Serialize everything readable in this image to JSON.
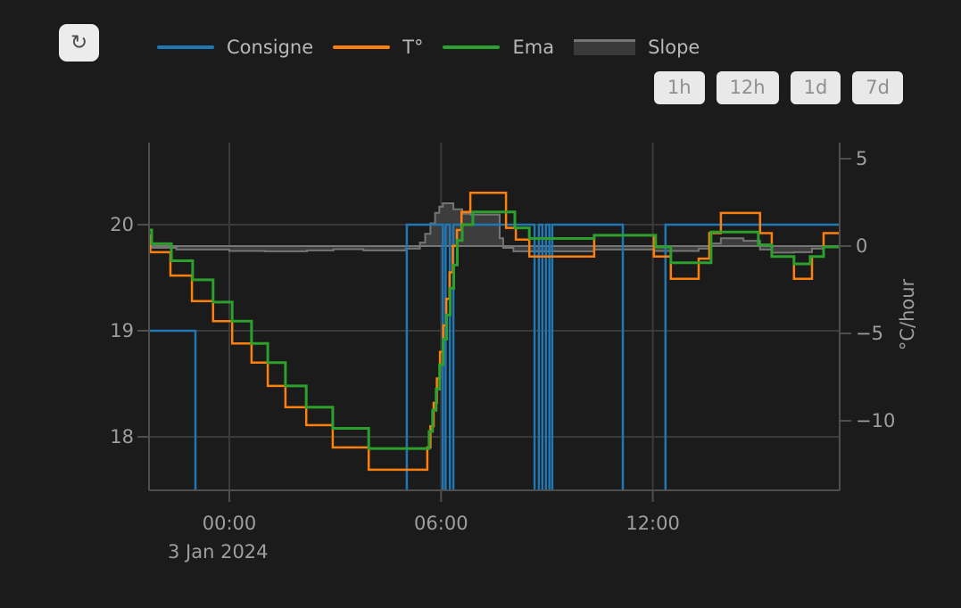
{
  "toolbar": {
    "refresh_icon": "↻",
    "range_buttons": [
      "1h",
      "12h",
      "1d",
      "7d"
    ]
  },
  "legend": {
    "items": [
      {
        "label": "Consigne",
        "color": "#1f77b4",
        "swatch": "line"
      },
      {
        "label": "T°",
        "color": "#ff7f0e",
        "swatch": "line"
      },
      {
        "label": "Ema",
        "color": "#2ca02c",
        "swatch": "line"
      },
      {
        "label": "Slope",
        "color": "#757575",
        "swatch": "area"
      }
    ]
  },
  "chart_data": {
    "type": "line",
    "title": "",
    "x_axis": {
      "date_label": "3 Jan 2024",
      "units": "time of day (hours)",
      "range": [
        -2.28,
        17.29
      ],
      "ticks": [
        {
          "label": "00:00",
          "t": 0
        },
        {
          "label": "06:00",
          "t": 6
        },
        {
          "label": "12:00",
          "t": 12
        }
      ]
    },
    "y_axis_left": {
      "units": "°C",
      "range": [
        17.45,
        20.78
      ],
      "ticks": [
        {
          "label": "20",
          "v": 20
        },
        {
          "label": "19",
          "v": 19
        },
        {
          "label": "18",
          "v": 18
        }
      ]
    },
    "y_axis_right": {
      "title": "°C/hour",
      "range": [
        -14.8,
        5.9
      ],
      "ticks": [
        {
          "label": "5",
          "v": 5
        },
        {
          "label": "0",
          "v": 0
        },
        {
          "label": "−5",
          "v": -5
        },
        {
          "label": "−10",
          "v": -10
        }
      ]
    },
    "series": [
      {
        "name": "Slope",
        "axis": "right",
        "style": "step-area",
        "line_color": "#757575",
        "fill_color": "#3d3d3d",
        "points": [
          [
            -2.28,
            -0.1
          ],
          [
            -1.5,
            -0.2
          ],
          [
            0,
            -0.28
          ],
          [
            1,
            -0.3
          ],
          [
            2.2,
            -0.25
          ],
          [
            2.95,
            -0.18
          ],
          [
            3.8,
            -0.25
          ],
          [
            5,
            -0.15
          ],
          [
            5.4,
            0.2
          ],
          [
            5.55,
            0.7
          ],
          [
            5.7,
            1.3
          ],
          [
            5.83,
            1.9
          ],
          [
            5.95,
            2.25
          ],
          [
            6.05,
            2.45
          ],
          [
            6.35,
            2.1
          ],
          [
            6.6,
            1.85
          ],
          [
            6.83,
            1.8
          ],
          [
            7.66,
            0.45
          ],
          [
            7.76,
            -0.1
          ],
          [
            8.05,
            -0.3
          ],
          [
            10.34,
            -0.2
          ],
          [
            12.03,
            -0.28
          ],
          [
            13.3,
            -0.15
          ],
          [
            13.6,
            0.15
          ],
          [
            13.93,
            0.45
          ],
          [
            14.57,
            0.3
          ],
          [
            15.04,
            -0.2
          ],
          [
            15.37,
            -0.38
          ],
          [
            16,
            -0.35
          ],
          [
            16.51,
            -0.15
          ],
          [
            16.84,
            -0.02
          ]
        ]
      },
      {
        "name": "Consigne",
        "axis": "left",
        "style": "step-line",
        "line_color": "#1f77b4",
        "points": [
          [
            -2.28,
            19
          ],
          [
            -0.96,
            17
          ],
          [
            5.03,
            20
          ],
          [
            6.05,
            17
          ],
          [
            6.13,
            20
          ],
          [
            6.25,
            17
          ],
          [
            6.35,
            20
          ],
          [
            8.65,
            17
          ],
          [
            8.77,
            20
          ],
          [
            8.87,
            17
          ],
          [
            8.97,
            20
          ],
          [
            9.07,
            17
          ],
          [
            9.15,
            20
          ],
          [
            11.15,
            17
          ],
          [
            12.36,
            20
          ]
        ]
      },
      {
        "name": "T°",
        "axis": "left",
        "style": "step-line",
        "line_color": "#ff7f0e",
        "points": [
          [
            -2.28,
            19.9
          ],
          [
            -2.24,
            19.74
          ],
          [
            -1.67,
            19.52
          ],
          [
            -1.06,
            19.28
          ],
          [
            -0.46,
            19.09
          ],
          [
            0.08,
            18.88
          ],
          [
            0.63,
            18.7
          ],
          [
            1.09,
            18.48
          ],
          [
            1.59,
            18.28
          ],
          [
            2.18,
            18.11
          ],
          [
            2.93,
            17.9
          ],
          [
            3.95,
            17.69
          ],
          [
            5.61,
            17.9
          ],
          [
            5.7,
            18.1
          ],
          [
            5.79,
            18.32
          ],
          [
            5.88,
            18.55
          ],
          [
            5.97,
            18.8
          ],
          [
            6.06,
            19.05
          ],
          [
            6.15,
            19.3
          ],
          [
            6.24,
            19.55
          ],
          [
            6.33,
            19.8
          ],
          [
            6.45,
            19.95
          ],
          [
            6.58,
            20.12
          ],
          [
            6.83,
            20.3
          ],
          [
            7.84,
            19.97
          ],
          [
            8.12,
            19.86
          ],
          [
            8.5,
            19.7
          ],
          [
            10.34,
            19.9
          ],
          [
            12.03,
            19.7
          ],
          [
            12.51,
            19.49
          ],
          [
            13.3,
            19.68
          ],
          [
            13.6,
            19.92
          ],
          [
            13.93,
            20.11
          ],
          [
            15.04,
            19.92
          ],
          [
            15.37,
            19.7
          ],
          [
            16,
            19.49
          ],
          [
            16.51,
            19.7
          ],
          [
            16.84,
            19.92
          ]
        ]
      },
      {
        "name": "Ema",
        "axis": "left",
        "style": "step-line",
        "line_color": "#2ca02c",
        "points": [
          [
            -2.28,
            19.95
          ],
          [
            -2.2,
            19.82
          ],
          [
            -1.64,
            19.66
          ],
          [
            -1.04,
            19.48
          ],
          [
            -0.46,
            19.27
          ],
          [
            0.08,
            19.09
          ],
          [
            0.63,
            18.88
          ],
          [
            1.09,
            18.7
          ],
          [
            1.59,
            18.48
          ],
          [
            2.18,
            18.28
          ],
          [
            2.93,
            18.08
          ],
          [
            3.95,
            17.89
          ],
          [
            5.66,
            18.05
          ],
          [
            5.76,
            18.25
          ],
          [
            5.86,
            18.45
          ],
          [
            5.96,
            18.68
          ],
          [
            6.06,
            18.92
          ],
          [
            6.16,
            19.15
          ],
          [
            6.26,
            19.4
          ],
          [
            6.36,
            19.62
          ],
          [
            6.46,
            19.85
          ],
          [
            6.6,
            20
          ],
          [
            6.9,
            20.12
          ],
          [
            8.09,
            19.97
          ],
          [
            8.5,
            19.87
          ],
          [
            10.34,
            19.9
          ],
          [
            12.08,
            19.79
          ],
          [
            12.51,
            19.64
          ],
          [
            13.65,
            19.93
          ],
          [
            14.99,
            19.81
          ],
          [
            15.37,
            19.7
          ],
          [
            16,
            19.63
          ],
          [
            16.46,
            19.7
          ],
          [
            16.84,
            19.79
          ]
        ]
      }
    ],
    "legend_position": "top",
    "grid": {
      "x_gridlines": true,
      "y_left_gridlines": true,
      "y_right_gridlines": false
    }
  }
}
